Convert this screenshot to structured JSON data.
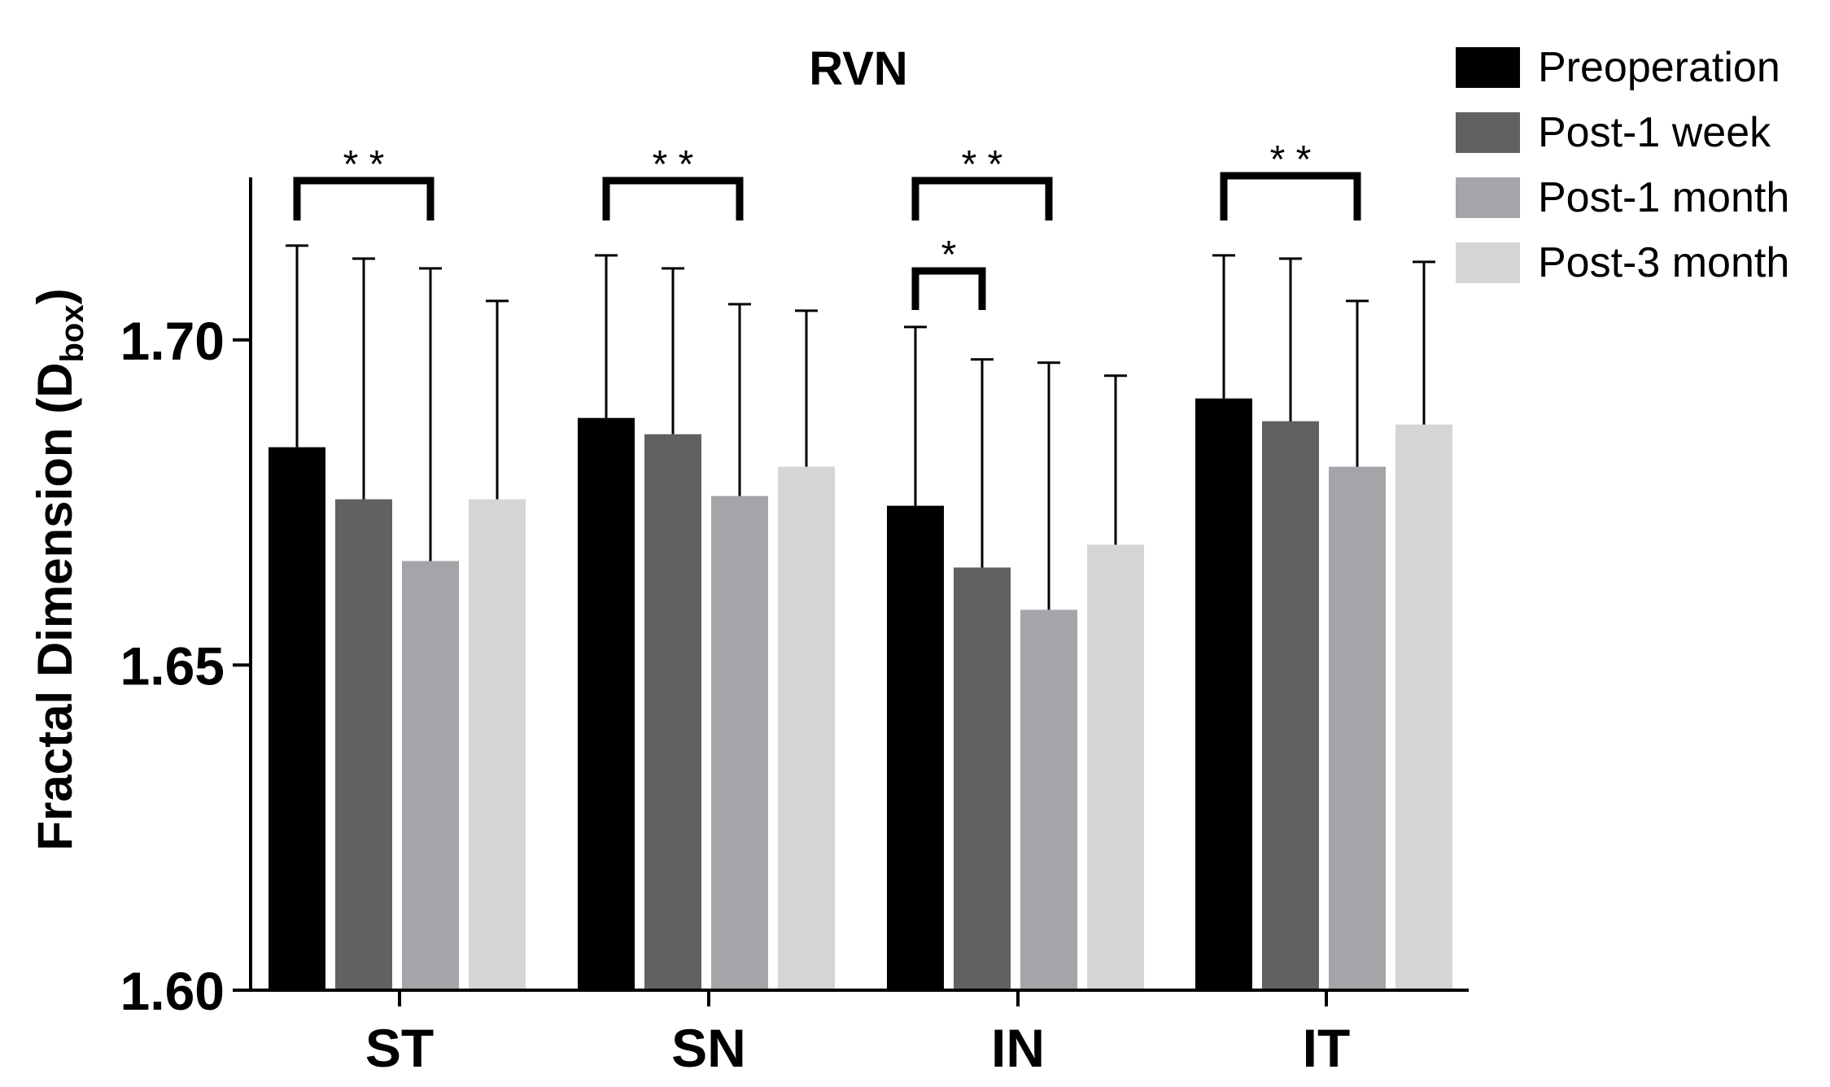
{
  "chart_data": {
    "type": "bar",
    "title": "RVN",
    "ylabel": {
      "main": "Fractal Dimension (D",
      "sub": "box",
      "end": ")"
    },
    "xlabel": "",
    "ylim": [
      1.6,
      1.725
    ],
    "yticks": [
      1.6,
      1.65,
      1.7
    ],
    "ytick_labels": [
      "1.60",
      "1.65",
      "1.70"
    ],
    "categories": [
      "ST",
      "SN",
      "IN",
      "IT"
    ],
    "legend_position": "top-right",
    "series": [
      {
        "name": "Preoperation",
        "color": "#000000",
        "values": [
          1.6835,
          1.688,
          1.6745,
          1.691
        ],
        "errors": [
          0.031,
          0.025,
          0.0275,
          0.022
        ]
      },
      {
        "name": "Post-1 week",
        "color": "#616161",
        "values": [
          1.6755,
          1.6855,
          1.665,
          1.6875
        ],
        "errors": [
          0.037,
          0.0255,
          0.032,
          0.025
        ]
      },
      {
        "name": "Post-1 month",
        "color": "#a5a5a9",
        "values": [
          1.666,
          1.676,
          1.6585,
          1.6805
        ],
        "errors": [
          0.045,
          0.0295,
          0.038,
          0.0255
        ]
      },
      {
        "name": "Post-3 month",
        "color": "#d5d5d5",
        "values": [
          1.6755,
          1.6805,
          1.6685,
          1.687
        ],
        "errors": [
          0.0305,
          0.024,
          0.026,
          0.025
        ]
      }
    ],
    "significance": [
      {
        "category": "ST",
        "from_series": 0,
        "to_series": 2,
        "label": "* *"
      },
      {
        "category": "SN",
        "from_series": 0,
        "to_series": 2,
        "label": "* *"
      },
      {
        "category": "IN",
        "from_series": 0,
        "to_series": 2,
        "label": "* *"
      },
      {
        "category": "IN",
        "from_series": 0,
        "to_series": 1,
        "label": "*"
      },
      {
        "category": "IT",
        "from_series": 0,
        "to_series": 2,
        "label": "* *"
      }
    ]
  }
}
